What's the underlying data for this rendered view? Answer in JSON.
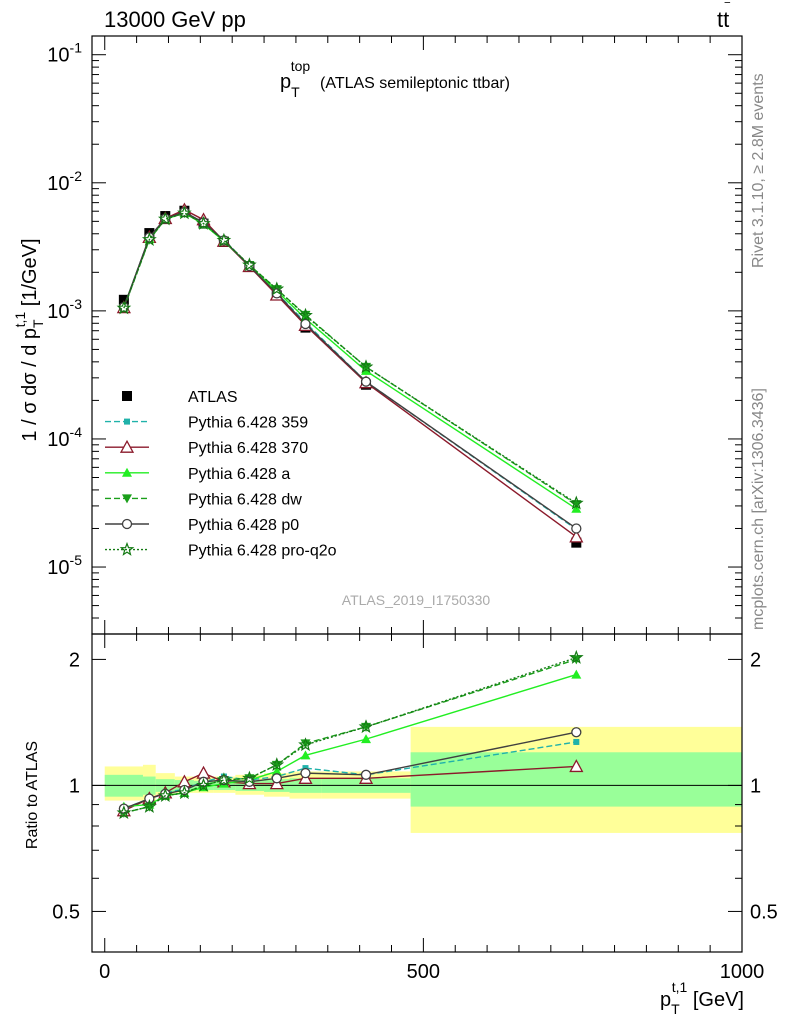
{
  "header": {
    "energy": "13000 GeV pp",
    "process": "tt",
    "process_bar": "‾"
  },
  "side_labels": {
    "rivet": "Rivet 3.1.10, ≥ 2.8M events",
    "mcplots": "mcplots.cern.ch [arXiv:1306.3436]"
  },
  "colors": {
    "ATLAS": "#000000",
    "p359": "#20b2aa",
    "p370": "#8b1a2b",
    "pa": "#22ee22",
    "pdw": "#1a9f1a",
    "pp0": "#404040",
    "pq2o": "#137a13",
    "band_inner": "#99ff99",
    "band_outer": "#ffff99"
  },
  "chart_data": [
    {
      "type": "line",
      "title": "p_T^top",
      "title_main": "p",
      "title_sub": "T",
      "title_sup": "top",
      "subtitle": "(ATLAS semileptonic ttbar)",
      "analysis_id": "ATLAS_2019_I1750330",
      "ylabel": "1 / σ dσ / d p_T^t,1 [1/GeV]",
      "ylabel_main": "1 / σ dσ / d p",
      "ylabel_sub": "T",
      "ylabel_sup": "t,1",
      "ylabel_unit": " [1/GeV]",
      "yscale": "log",
      "ylim": [
        3e-06,
        0.14
      ],
      "xlim": [
        -20,
        1000
      ],
      "y_ticks": [
        {
          "value": 1e-05,
          "base": "10",
          "exp": "-5"
        },
        {
          "value": 0.0001,
          "base": "10",
          "exp": "-4"
        },
        {
          "value": 0.001,
          "base": "10",
          "exp": "-3"
        },
        {
          "value": 0.01,
          "base": "10",
          "exp": "-2"
        },
        {
          "value": 0.1,
          "base": "10",
          "exp": "-1"
        }
      ],
      "legend_position": "lower-left",
      "x": [
        30,
        70,
        95,
        125,
        155,
        187,
        227,
        270,
        315,
        410,
        740
      ],
      "series": [
        {
          "name": "ATLAS",
          "key": "ATLAS",
          "marker": "square",
          "line": "none",
          "values": [
            0.00122,
            0.00405,
            0.0055,
            0.00605,
            0.0048,
            0.00345,
            0.0022,
            0.00132,
            0.00074,
            0.000265,
            1.55e-05
          ]
        },
        {
          "name": "Pythia 6.428 359",
          "key": "p359",
          "marker": "square-small",
          "line": "dashed",
          "values": [
            0.00107,
            0.00375,
            0.0053,
            0.0059,
            0.0049,
            0.0036,
            0.00224,
            0.00138,
            0.00081,
            0.00028,
            1.97e-05
          ]
        },
        {
          "name": "Pythia 6.428 370",
          "key": "p370",
          "marker": "triangle-open",
          "line": "solid",
          "values": [
            0.00106,
            0.00375,
            0.00527,
            0.00615,
            0.00515,
            0.0035,
            0.00222,
            0.00133,
            0.00077,
            0.000275,
            1.72e-05
          ]
        },
        {
          "name": "Pythia 6.428 a",
          "key": "pa",
          "marker": "triangle",
          "line": "solid",
          "values": [
            0.00108,
            0.00365,
            0.0052,
            0.0058,
            0.00475,
            0.0035,
            0.00226,
            0.00143,
            0.00087,
            0.00034,
            2.85e-05
          ]
        },
        {
          "name": "Pythia 6.428 dw",
          "key": "pdw",
          "marker": "triangle-down",
          "line": "dashed",
          "values": [
            0.00105,
            0.0036,
            0.0052,
            0.0058,
            0.0048,
            0.00355,
            0.00228,
            0.00148,
            0.00093,
            0.000365,
            3.1e-05
          ]
        },
        {
          "name": "Pythia 6.428 p0",
          "key": "pp0",
          "marker": "circle-open",
          "line": "solid",
          "values": [
            0.00107,
            0.00375,
            0.00525,
            0.0059,
            0.0049,
            0.00355,
            0.00224,
            0.00137,
            0.00079,
            0.00028,
            2e-05
          ]
        },
        {
          "name": "Pythia 6.428 pro-q2o",
          "key": "pq2o",
          "marker": "star",
          "line": "dotted",
          "values": [
            0.00105,
            0.0036,
            0.0052,
            0.0058,
            0.0048,
            0.00355,
            0.00228,
            0.00148,
            0.00092,
            0.000365,
            3.15e-05
          ]
        }
      ]
    },
    {
      "type": "line",
      "ylabel": "Ratio to ATLAS",
      "xlabel": "p_T^t,1 [GeV]",
      "xlabel_main": "p",
      "xlabel_sub": "T",
      "xlabel_sup": "t,1",
      "xlabel_unit": " [GeV]",
      "ylim": [
        0.4,
        2.3
      ],
      "yscale": "log",
      "y_ticks": [
        {
          "value": 0.5,
          "label": "0.5"
        },
        {
          "value": 1,
          "label": "1"
        },
        {
          "value": 2,
          "label": "2"
        }
      ],
      "xlim": [
        -20,
        1000
      ],
      "x_ticks": [
        {
          "value": 0,
          "label": "0"
        },
        {
          "value": 500,
          "label": "500"
        },
        {
          "value": 1000,
          "label": "1000"
        }
      ],
      "x": [
        30,
        70,
        95,
        125,
        155,
        187,
        227,
        270,
        315,
        410,
        740
      ],
      "bins": [
        [
          0,
          60
        ],
        [
          60,
          80
        ],
        [
          80,
          110
        ],
        [
          110,
          140
        ],
        [
          140,
          170
        ],
        [
          170,
          205
        ],
        [
          205,
          250
        ],
        [
          250,
          290
        ],
        [
          290,
          340
        ],
        [
          340,
          480
        ],
        [
          480,
          1000
        ]
      ],
      "band_inner": [
        [
          0.94,
          1.06
        ],
        [
          0.95,
          1.05
        ],
        [
          0.965,
          1.035
        ],
        [
          0.97,
          1.03
        ],
        [
          0.975,
          1.025
        ],
        [
          0.975,
          1.025
        ],
        [
          0.97,
          1.03
        ],
        [
          0.965,
          1.035
        ],
        [
          0.96,
          1.04
        ],
        [
          0.96,
          1.04
        ],
        [
          0.89,
          1.2
        ]
      ],
      "band_outer": [
        [
          0.92,
          1.11
        ],
        [
          0.92,
          1.12
        ],
        [
          0.95,
          1.07
        ],
        [
          0.96,
          1.05
        ],
        [
          0.96,
          1.05
        ],
        [
          0.96,
          1.05
        ],
        [
          0.95,
          1.06
        ],
        [
          0.94,
          1.07
        ],
        [
          0.93,
          1.08
        ],
        [
          0.93,
          1.08
        ],
        [
          0.77,
          1.38
        ]
      ],
      "series": [
        {
          "name": "Pythia 6.428 359",
          "key": "p359",
          "marker": "square-small",
          "line": "dashed",
          "values": [
            0.88,
            0.93,
            0.96,
            0.98,
            1.02,
            1.05,
            1.03,
            1.05,
            1.1,
            1.06,
            1.27
          ]
        },
        {
          "name": "Pythia 6.428 370",
          "key": "p370",
          "marker": "triangle-open",
          "line": "solid",
          "values": [
            0.87,
            0.93,
            0.96,
            1.02,
            1.07,
            1.02,
            1.01,
            1.01,
            1.04,
            1.04,
            1.11
          ]
        },
        {
          "name": "Pythia 6.428 a",
          "key": "pa",
          "marker": "triangle",
          "line": "solid",
          "values": [
            0.89,
            0.9,
            0.945,
            0.96,
            0.99,
            1.01,
            1.03,
            1.08,
            1.18,
            1.29,
            1.84
          ]
        },
        {
          "name": "Pythia 6.428 dw",
          "key": "pdw",
          "marker": "triangle-down",
          "line": "dashed",
          "values": [
            0.86,
            0.89,
            0.945,
            0.96,
            1.0,
            1.03,
            1.04,
            1.12,
            1.26,
            1.38,
            2.0
          ]
        },
        {
          "name": "Pythia 6.428 p0",
          "key": "pp0",
          "marker": "circle-open",
          "line": "solid",
          "values": [
            0.88,
            0.93,
            0.955,
            0.975,
            1.02,
            1.03,
            1.02,
            1.04,
            1.07,
            1.06,
            1.34
          ]
        },
        {
          "name": "Pythia 6.428 pro-q2o",
          "key": "pq2o",
          "marker": "star",
          "line": "dotted",
          "values": [
            0.86,
            0.89,
            0.945,
            0.96,
            1.0,
            1.03,
            1.04,
            1.12,
            1.25,
            1.38,
            2.02
          ]
        }
      ]
    }
  ]
}
